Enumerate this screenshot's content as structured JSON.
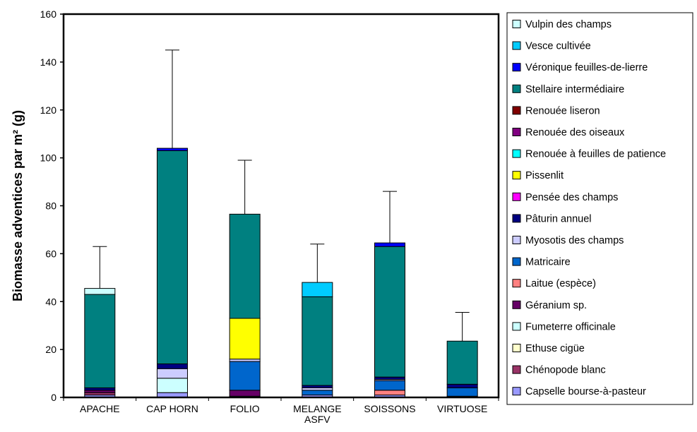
{
  "chart_data": {
    "type": "bar",
    "stacked": true,
    "ylabel": "Biomasse adventices par m² (g)",
    "ylim": [
      0,
      160
    ],
    "yticks": [
      0,
      20,
      40,
      60,
      80,
      100,
      120,
      140,
      160
    ],
    "grid": false,
    "legend_position": "right",
    "categories": [
      "APACHE",
      "CAP HORN",
      "FOLIO",
      "MELANGE ASFV",
      "SOISSONS",
      "VIRTUOSE"
    ],
    "category_lines": [
      [
        "APACHE"
      ],
      [
        "CAP HORN"
      ],
      [
        "FOLIO"
      ],
      [
        "MELANGE",
        "ASFV"
      ],
      [
        "SOISSONS"
      ],
      [
        "VIRTUOSE"
      ]
    ],
    "error_tops": [
      63,
      145,
      99,
      64,
      86,
      35.5
    ],
    "series": [
      {
        "name": "Capselle bourse-à-pasteur",
        "color": "#9999ff",
        "values": [
          1.0,
          2.0,
          0.5,
          1.0,
          1.0,
          0.5
        ]
      },
      {
        "name": "Chénopode blanc",
        "color": "#993366",
        "values": [
          1.0,
          0,
          0,
          0,
          0,
          0
        ]
      },
      {
        "name": "Ethuse cigüe",
        "color": "#ffffcc",
        "values": [
          0,
          0,
          0,
          0,
          0,
          0
        ]
      },
      {
        "name": "Fumeterre officinale",
        "color": "#ccffff",
        "values": [
          0,
          6.0,
          0,
          0,
          0,
          0
        ]
      },
      {
        "name": "Géranium sp.",
        "color": "#660066",
        "values": [
          1.0,
          0,
          2.5,
          0,
          0,
          0
        ]
      },
      {
        "name": "Laitue (espèce)",
        "color": "#ff8080",
        "values": [
          0,
          0,
          0,
          0,
          2.0,
          0
        ]
      },
      {
        "name": "Matricaire",
        "color": "#0066cc",
        "values": [
          0,
          0,
          12.0,
          2.0,
          4.0,
          3.5
        ]
      },
      {
        "name": "Myosotis des champs",
        "color": "#ccccff",
        "values": [
          0,
          4.0,
          1.0,
          1.0,
          0.5,
          0
        ]
      },
      {
        "name": "Pâturin annuel",
        "color": "#000080",
        "values": [
          1.0,
          2.0,
          0,
          1.0,
          1.0,
          1.5
        ]
      },
      {
        "name": "Pensée des champs",
        "color": "#ff00ff",
        "values": [
          0,
          0,
          0,
          0,
          0,
          0
        ]
      },
      {
        "name": "Pissenlit",
        "color": "#ffff00",
        "values": [
          0,
          0,
          17.0,
          0,
          0,
          0
        ]
      },
      {
        "name": "Renouée à feuilles de patience",
        "color": "#00ffff",
        "values": [
          0,
          0,
          0,
          0,
          0,
          0
        ]
      },
      {
        "name": "Renouée des oiseaux",
        "color": "#800080",
        "values": [
          0,
          0,
          0,
          0,
          0,
          0
        ]
      },
      {
        "name": "Renouée liseron",
        "color": "#800000",
        "values": [
          0,
          0,
          0,
          0,
          0,
          0
        ]
      },
      {
        "name": "Stellaire intermédiaire",
        "color": "#008080",
        "values": [
          39.0,
          89.0,
          43.5,
          37.0,
          54.5,
          18.0
        ]
      },
      {
        "name": "Véronique feuilles-de-lierre",
        "color": "#0000ff",
        "values": [
          0,
          1.0,
          0,
          0,
          1.5,
          0
        ]
      },
      {
        "name": "Vesce cultivée",
        "color": "#00ccff",
        "values": [
          0,
          0,
          0,
          6.0,
          0,
          0
        ]
      },
      {
        "name": "Vulpin des champs",
        "color": "#ccffff",
        "values": [
          2.5,
          0,
          0,
          0,
          0,
          0
        ]
      }
    ]
  }
}
